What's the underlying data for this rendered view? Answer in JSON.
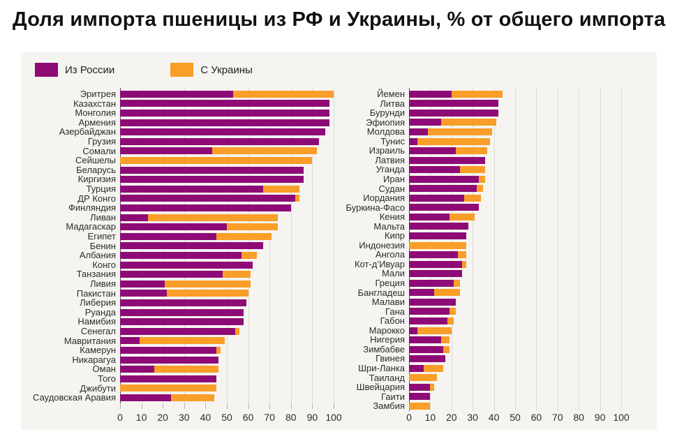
{
  "title": "Доля импорта пшеницы из РФ и Украины, % от общего импорта",
  "legend": [
    {
      "label": "Из России",
      "color_key": "russia"
    },
    {
      "label": "С Украины",
      "color_key": "ukraine"
    }
  ],
  "colors": {
    "russia": "#8E0B76",
    "ukraine": "#F99E28",
    "panel_bg": "#F5F4F1",
    "grid": "#DCDBD6",
    "axis_line": "#55524F",
    "tick": "#B5B4B0",
    "text": "#2b2b2b"
  },
  "chart_data": [
    {
      "type": "bar",
      "orientation": "horizontal",
      "stacked": true,
      "panel": "left",
      "series_names": [
        "Из России",
        "С Украины"
      ],
      "x_axis": {
        "min": 0,
        "max": 100,
        "ticks": [
          0,
          10,
          20,
          30,
          40,
          50,
          60,
          70,
          80,
          90,
          100
        ]
      },
      "rows": [
        {
          "label": "Эритрея",
          "russia": 53,
          "ukraine": 47
        },
        {
          "label": "Казахстан",
          "russia": 98,
          "ukraine": 0
        },
        {
          "label": "Монголия",
          "russia": 98,
          "ukraine": 0
        },
        {
          "label": "Армения",
          "russia": 98,
          "ukraine": 0
        },
        {
          "label": "Азербайджан",
          "russia": 96,
          "ukraine": 0
        },
        {
          "label": "Грузия",
          "russia": 93,
          "ukraine": 0
        },
        {
          "label": "Сомали",
          "russia": 43,
          "ukraine": 49
        },
        {
          "label": "Сейшелы",
          "russia": 0,
          "ukraine": 90
        },
        {
          "label": "Беларусь",
          "russia": 86,
          "ukraine": 0
        },
        {
          "label": "Киргизия",
          "russia": 86,
          "ukraine": 0
        },
        {
          "label": "Турция",
          "russia": 67,
          "ukraine": 17
        },
        {
          "label": "ДР Конго",
          "russia": 82,
          "ukraine": 2
        },
        {
          "label": "Финляндия",
          "russia": 80,
          "ukraine": 0
        },
        {
          "label": "Ливан",
          "russia": 13,
          "ukraine": 61
        },
        {
          "label": "Мадагаскар",
          "russia": 50,
          "ukraine": 24
        },
        {
          "label": "Египет",
          "russia": 45,
          "ukraine": 26
        },
        {
          "label": "Бенин",
          "russia": 67,
          "ukraine": 0
        },
        {
          "label": "Албания",
          "russia": 57,
          "ukraine": 7
        },
        {
          "label": "Конго",
          "russia": 62,
          "ukraine": 0
        },
        {
          "label": "Танзания",
          "russia": 48,
          "ukraine": 13
        },
        {
          "label": "Ливия",
          "russia": 21,
          "ukraine": 40
        },
        {
          "label": "Пакистан",
          "russia": 22,
          "ukraine": 38
        },
        {
          "label": "Либерия",
          "russia": 59,
          "ukraine": 0
        },
        {
          "label": "Руанда",
          "russia": 58,
          "ukraine": 0
        },
        {
          "label": "Намибия",
          "russia": 58,
          "ukraine": 0
        },
        {
          "label": "Сенегал",
          "russia": 54,
          "ukraine": 2
        },
        {
          "label": "Мавритания",
          "russia": 9,
          "ukraine": 40
        },
        {
          "label": "Камерун",
          "russia": 45,
          "ukraine": 2
        },
        {
          "label": "Никарагуа",
          "russia": 46,
          "ukraine": 0
        },
        {
          "label": "Оман",
          "russia": 16,
          "ukraine": 30
        },
        {
          "label": "Того",
          "russia": 45,
          "ukraine": 0
        },
        {
          "label": "Джибути",
          "russia": 0,
          "ukraine": 45
        },
        {
          "label": "Саудовская Аравия",
          "russia": 24,
          "ukraine": 20
        }
      ]
    },
    {
      "type": "bar",
      "orientation": "horizontal",
      "stacked": true,
      "panel": "right",
      "series_names": [
        "Из России",
        "С Украины"
      ],
      "x_axis": {
        "min": 0,
        "max": 100,
        "ticks": [
          0,
          10,
          20,
          30,
          40,
          50,
          60,
          70,
          80,
          90,
          100
        ]
      },
      "rows": [
        {
          "label": "Йемен",
          "russia": 20,
          "ukraine": 24
        },
        {
          "label": "Литва",
          "russia": 42,
          "ukraine": 0
        },
        {
          "label": "Бурунди",
          "russia": 42,
          "ukraine": 0
        },
        {
          "label": "Эфиопия",
          "russia": 15,
          "ukraine": 26
        },
        {
          "label": "Молдова",
          "russia": 9,
          "ukraine": 30
        },
        {
          "label": "Тунис",
          "russia": 4,
          "ukraine": 34
        },
        {
          "label": "Израиль",
          "russia": 22,
          "ukraine": 15
        },
        {
          "label": "Латвия",
          "russia": 36,
          "ukraine": 0
        },
        {
          "label": "Уганда",
          "russia": 24,
          "ukraine": 12
        },
        {
          "label": "Иран",
          "russia": 33,
          "ukraine": 3
        },
        {
          "label": "Судан",
          "russia": 32,
          "ukraine": 3
        },
        {
          "label": "Иордания",
          "russia": 26,
          "ukraine": 8
        },
        {
          "label": "Буркина-Фасо",
          "russia": 33,
          "ukraine": 0
        },
        {
          "label": "Кения",
          "russia": 19,
          "ukraine": 12
        },
        {
          "label": "Мальта",
          "russia": 28,
          "ukraine": 0
        },
        {
          "label": "Кипр",
          "russia": 27,
          "ukraine": 0
        },
        {
          "label": "Индонезия",
          "russia": 0,
          "ukraine": 27
        },
        {
          "label": "Ангола",
          "russia": 23,
          "ukraine": 4
        },
        {
          "label": "Кот-д’Ивуар",
          "russia": 25,
          "ukraine": 2
        },
        {
          "label": "Мали",
          "russia": 25,
          "ukraine": 0
        },
        {
          "label": "Греция",
          "russia": 21,
          "ukraine": 3
        },
        {
          "label": "Бангладеш",
          "russia": 12,
          "ukraine": 12
        },
        {
          "label": "Малави",
          "russia": 22,
          "ukraine": 0
        },
        {
          "label": "Гана",
          "russia": 19,
          "ukraine": 3
        },
        {
          "label": "Габон",
          "russia": 18,
          "ukraine": 3
        },
        {
          "label": "Марокко",
          "russia": 4,
          "ukraine": 16
        },
        {
          "label": "Нигерия",
          "russia": 15,
          "ukraine": 4
        },
        {
          "label": "Зимбабве",
          "russia": 16,
          "ukraine": 3
        },
        {
          "label": "Гвинея",
          "russia": 17,
          "ukraine": 0
        },
        {
          "label": "Шри-Ланка",
          "russia": 7,
          "ukraine": 9
        },
        {
          "label": "Таиланд",
          "russia": 0,
          "ukraine": 13
        },
        {
          "label": "Швейцария",
          "russia": 10,
          "ukraine": 2
        },
        {
          "label": "Гаити",
          "russia": 10,
          "ukraine": 0
        },
        {
          "label": "Замбия",
          "russia": 0,
          "ukraine": 10
        }
      ]
    }
  ]
}
